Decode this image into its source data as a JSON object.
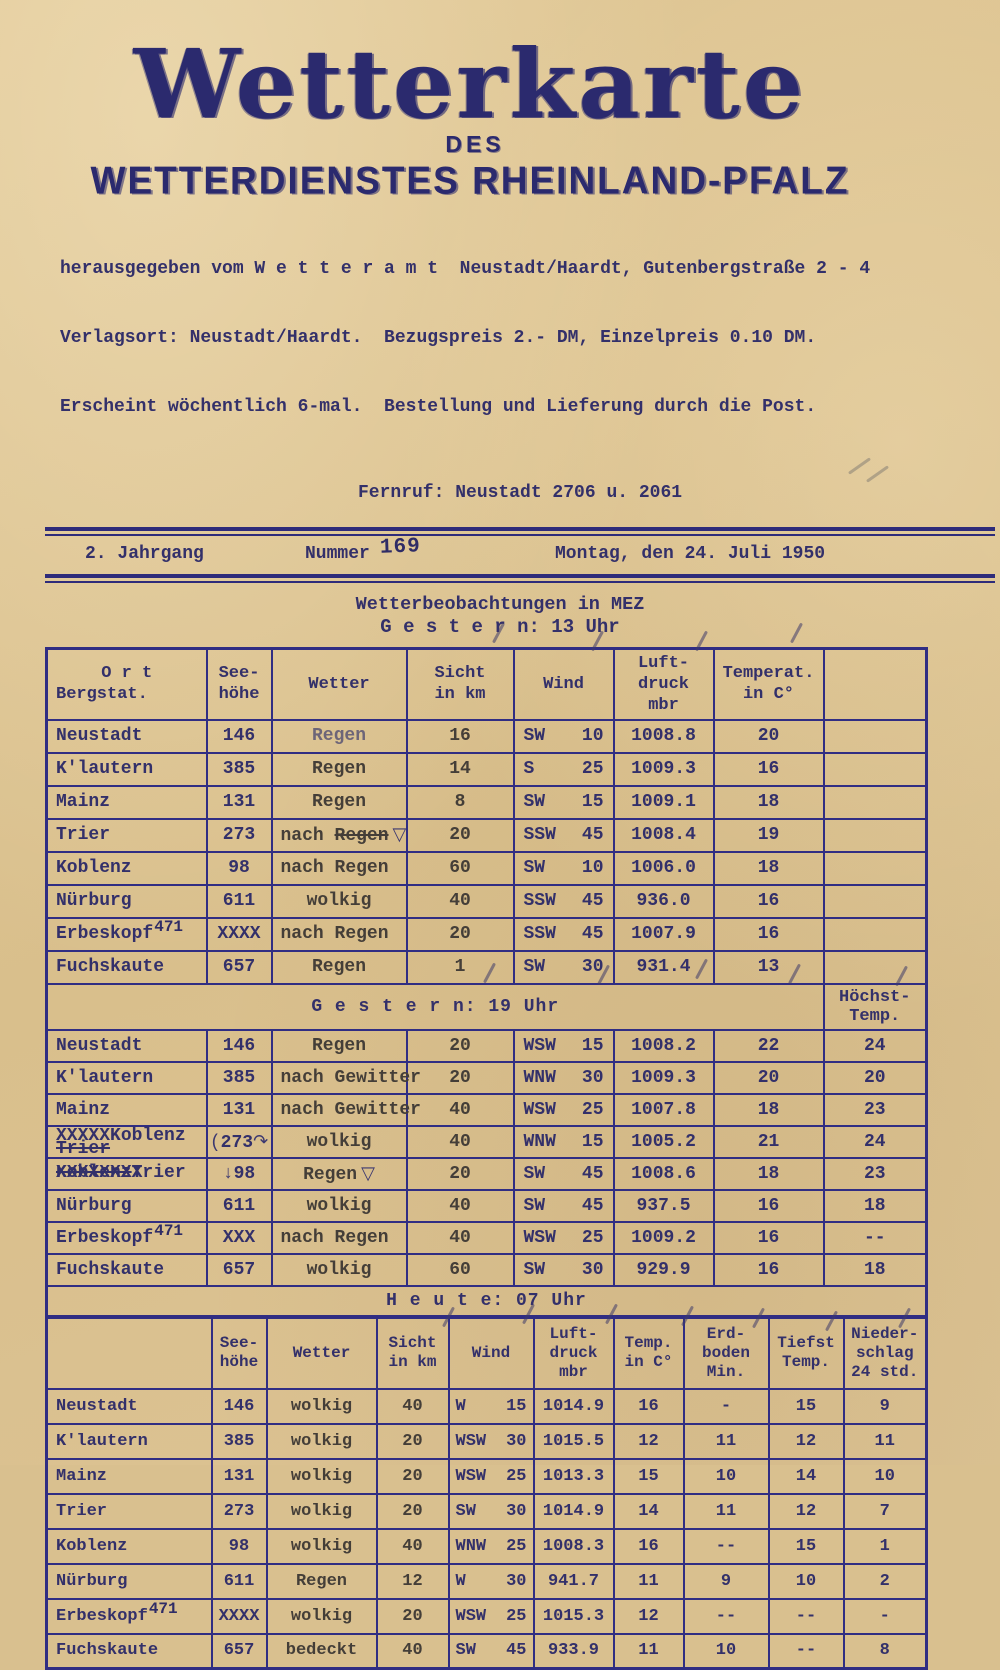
{
  "header": {
    "title": "Wetterkarte",
    "des": "DES",
    "organization": "WETTERDIENSTES RHEINLAND-PFALZ",
    "imprint_lines": [
      "herausgegeben vom W e t t e r a m t  Neustadt/Haardt, Gutenbergstraße 2 - 4",
      "Verlagsort: Neustadt/Haardt.  Bezugspreis 2.- DM, Einzelpreis 0.10 DM.",
      "Erscheint wöchentlich 6-mal.  Bestellung und Lieferung durch die Post."
    ],
    "phone": "Fernruf: Neustadt 2706 u. 2061"
  },
  "masthead": {
    "volume": "2. Jahrgang",
    "number_label": "Nummer",
    "number_value": "169",
    "date": "Montag, den 24. Juli 1950"
  },
  "sections": {
    "observations": "Wetterbeobachtungen in MEZ",
    "gestern13": "G e s t e r n:  13 Uhr",
    "gestern19": "G e s t e r n:  19 Uhr",
    "hoechst_lines": [
      "Höchst-",
      "Temp."
    ],
    "heute07": "H e u t e:  07 Uhr"
  },
  "gestern13": {
    "headers": [
      [
        "O r t",
        "Bergstat."
      ],
      [
        "See-",
        "höhe"
      ],
      [
        "Wetter"
      ],
      [
        "Sicht",
        "in km"
      ],
      [
        "Wind"
      ],
      [
        "Luft-",
        "druck",
        "mbr"
      ],
      [
        "Temperat.",
        "in C°"
      ],
      [
        ""
      ]
    ],
    "rows": [
      {
        "ort": "Neustadt",
        "hoehe": "146",
        "wetter": {
          "text": "Regen",
          "faded": true
        },
        "sicht": "16",
        "wind": [
          "SW",
          "10"
        ],
        "druck": "1008.8",
        "temp": "20",
        "extra": ""
      },
      {
        "ort": "K'lautern",
        "hoehe": "385",
        "wetter": "Regen",
        "sicht": "14",
        "wind": [
          "S",
          "25"
        ],
        "druck": "1009.3",
        "temp": "16",
        "extra": ""
      },
      {
        "ort": "Mainz",
        "hoehe": "131",
        "wetter": "Regen",
        "sicht": "8",
        "wind": [
          "SW",
          "15"
        ],
        "druck": "1009.1",
        "temp": "18",
        "extra": ""
      },
      {
        "ort": "Trier",
        "hoehe": "273",
        "wetter": {
          "pre": "nach ",
          "text": "Regen",
          "struck": true,
          "sym": "▽"
        },
        "sicht": "20",
        "wind": [
          "SSW",
          "45"
        ],
        "druck": "1008.4",
        "temp": "19",
        "extra": ""
      },
      {
        "ort": "Koblenz",
        "hoehe": "98",
        "wetter": {
          "pre": "nach ",
          "text": "Regen"
        },
        "sicht": "60",
        "wind": [
          "SW",
          "10"
        ],
        "druck": "1006.0",
        "temp": "18",
        "extra": ""
      },
      {
        "ort": "Nürburg",
        "hoehe": "611",
        "wetter": "wolkig",
        "sicht": "40",
        "wind": [
          "SSW",
          "45"
        ],
        "druck": "936.0",
        "temp": "16",
        "extra": ""
      },
      {
        "ort": "Erbeskopf",
        "ort_sup": "471",
        "hoehe": "XXXX",
        "wetter": {
          "pre": "nach ",
          "text": "Regen"
        },
        "sicht": "20",
        "wind": [
          "SSW",
          "45"
        ],
        "druck": "1007.9",
        "temp": "16",
        "extra": ""
      },
      {
        "ort": "Fuchskaute",
        "hoehe": "657",
        "wetter": "Regen",
        "sicht": "1",
        "wind": [
          "SW",
          "30"
        ],
        "druck": "931.4",
        "temp": "13",
        "extra": ""
      }
    ]
  },
  "gestern19": {
    "rows": [
      {
        "ort": "Neustadt",
        "hoehe": "146",
        "wetter": "Regen",
        "sicht": "20",
        "wind": [
          "WSW",
          "15"
        ],
        "druck": "1008.2",
        "temp": "22",
        "extra": "24"
      },
      {
        "ort": "K'lautern",
        "hoehe": "385",
        "wetter": {
          "pre": "nach ",
          "text": "Gewitter"
        },
        "sicht": "20",
        "wind": [
          "WNW",
          "30"
        ],
        "druck": "1009.3",
        "temp": "20",
        "extra": "20"
      },
      {
        "ort": "Mainz",
        "hoehe": "131",
        "wetter": {
          "pre": "nach ",
          "text": "Gewitter"
        },
        "sicht": "40",
        "wind": [
          "WSW",
          "25"
        ],
        "druck": "1007.8",
        "temp": "18",
        "extra": "23"
      },
      {
        "ort": "Koblenz",
        "ort_parts": {
          "x_prefix": "XXXXX",
          "name": "Koblenz",
          "struck_below": "Trier"
        },
        "hoehe": {
          "pre": "(",
          "text": "273",
          "post": "↷"
        },
        "wetter": "wolkig",
        "sicht": "40",
        "wind": [
          "WNW",
          "15"
        ],
        "druck": "1005.2",
        "temp": "21",
        "extra": "24"
      },
      {
        "ort": "Trier",
        "ort_parts": {
          "struck": "Koblenz",
          "over": "XXXXXXXX",
          "name": "Trier"
        },
        "hoehe": {
          "pre": "↓",
          "text": "98"
        },
        "wetter": {
          "text": "Regen",
          "sym": "▽"
        },
        "sicht": "20",
        "wind": [
          "SW",
          "45"
        ],
        "druck": "1008.6",
        "temp": "18",
        "extra": "23"
      },
      {
        "ort": "Nürburg",
        "hoehe": "611",
        "wetter": "wolkig",
        "sicht": "40",
        "wind": [
          "SW",
          "45"
        ],
        "druck": "937.5",
        "temp": "16",
        "extra": "18"
      },
      {
        "ort": "Erbeskopf",
        "ort_sup": "471",
        "hoehe": "XXX",
        "wetter": {
          "pre": "nach ",
          "text": "Regen"
        },
        "sicht": "40",
        "wind": [
          "WSW",
          "25"
        ],
        "druck": "1009.2",
        "temp": "16",
        "extra": "--"
      },
      {
        "ort": "Fuchskaute",
        "hoehe": "657",
        "wetter": "wolkig",
        "sicht": "60",
        "wind": [
          "SW",
          "30"
        ],
        "druck": "929.9",
        "temp": "16",
        "extra": "18"
      }
    ]
  },
  "heute07": {
    "headers": [
      [
        ""
      ],
      [
        "See-",
        "höhe"
      ],
      [
        "Wetter"
      ],
      [
        "Sicht",
        "in km"
      ],
      [
        "Wind"
      ],
      [
        "Luft-",
        "druck",
        "mbr"
      ],
      [
        "Temp.",
        "in C°"
      ],
      [
        "Erd-",
        "boden",
        "Min."
      ],
      [
        "Tiefst",
        "Temp."
      ],
      [
        "Nieder-",
        "schlag",
        "24 std."
      ]
    ],
    "rows": [
      {
        "ort": "Neustadt",
        "hoehe": "146",
        "wetter": "wolkig",
        "sicht": "40",
        "wind": [
          "W",
          "15"
        ],
        "druck": "1014.9",
        "temp": "16",
        "erd": "-",
        "tiefst": "15",
        "nieder": "9"
      },
      {
        "ort": "K'lautern",
        "hoehe": "385",
        "wetter": "wolkig",
        "sicht": "20",
        "wind": [
          "WSW",
          "30"
        ],
        "druck": "1015.5",
        "temp": "12",
        "erd": "11",
        "tiefst": "12",
        "nieder": "11"
      },
      {
        "ort": "Mainz",
        "hoehe": "131",
        "wetter": "wolkig",
        "sicht": "20",
        "wind": [
          "WSW",
          "25"
        ],
        "druck": "1013.3",
        "temp": "15",
        "erd": "10",
        "tiefst": "14",
        "nieder": "10"
      },
      {
        "ort": "Trier",
        "hoehe": "273",
        "wetter": "wolkig",
        "sicht": "20",
        "wind": [
          "SW",
          "30"
        ],
        "druck": "1014.9",
        "temp": "14",
        "erd": "11",
        "tiefst": "12",
        "nieder": "7"
      },
      {
        "ort": "Koblenz",
        "hoehe": "98",
        "wetter": "wolkig",
        "sicht": "40",
        "wind": [
          "WNW",
          "25"
        ],
        "druck": "1008.3",
        "temp": "16",
        "erd": "--",
        "tiefst": "15",
        "nieder": "1"
      },
      {
        "ort": "Nürburg",
        "hoehe": "611",
        "wetter": "Regen",
        "sicht": "12",
        "wind": [
          "W",
          "30"
        ],
        "druck": "941.7",
        "temp": "11",
        "erd": "9",
        "tiefst": "10",
        "nieder": "2"
      },
      {
        "ort": "Erbeskopf",
        "ort_sup": "471",
        "hoehe": "XXXX",
        "wetter": "wolkig",
        "sicht": "20",
        "wind": [
          "WSW",
          "25"
        ],
        "druck": "1015.3",
        "temp": "12",
        "erd": "--",
        "tiefst": "--",
        "nieder": "-"
      },
      {
        "ort": "Fuchskaute",
        "hoehe": "657",
        "wetter": "bedeckt",
        "sicht": "40",
        "wind": [
          "SW",
          "45"
        ],
        "druck": "933.9",
        "temp": "11",
        "erd": "10",
        "tiefst": "--",
        "nieder": "8"
      }
    ]
  }
}
